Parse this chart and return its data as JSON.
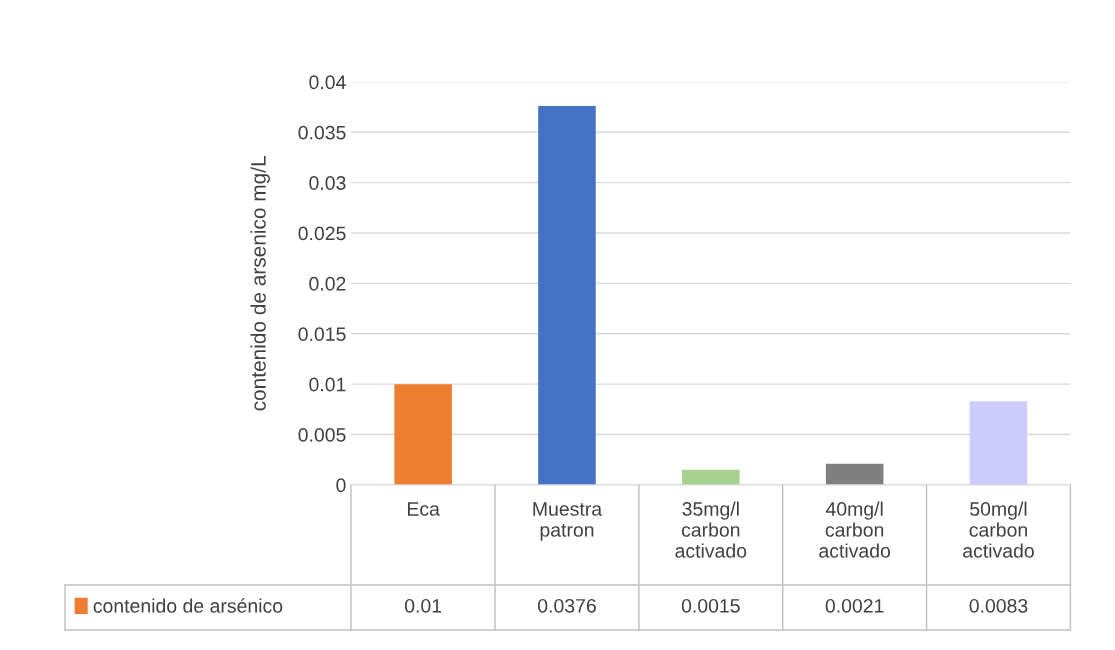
{
  "chart_data": {
    "type": "bar",
    "ylabel": "contenido de arsenico mg/L",
    "categories": [
      "Eca",
      "Muestra\npatron",
      "35mg/l\ncarbon\nactivado",
      "40mg/l\ncarbon\nactivado",
      "50mg/l\ncarbon\nactivado"
    ],
    "series": [
      {
        "name": "contenido de arsénico",
        "color": "#ed7d31",
        "colors": [
          "#ed7d31",
          "#4472c4",
          "#a9d18e",
          "#7f7f7f",
          "#ccccff"
        ],
        "values": [
          0.01,
          0.0376,
          0.0015,
          0.0021,
          0.0083
        ]
      }
    ],
    "ylim": [
      0,
      0.04
    ],
    "yticks": [
      0,
      0.005,
      0.01,
      0.015,
      0.02,
      0.025,
      0.03,
      0.035,
      0.04
    ],
    "grid": "y",
    "legend": "bottom left",
    "data_labels": true
  }
}
